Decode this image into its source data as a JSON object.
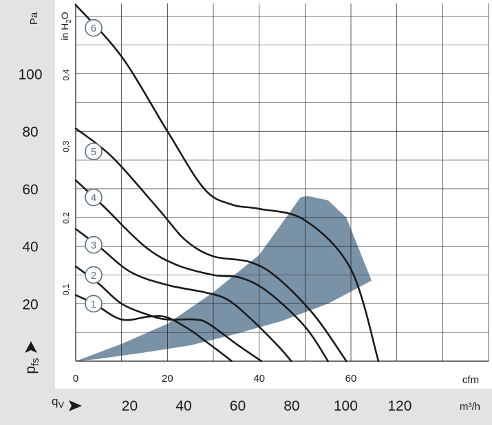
{
  "chart_data": {
    "type": "line",
    "title": "",
    "colors": {
      "background": "#ffffff",
      "frame_gray": "#e3e3e3",
      "grid": "#1a1a1a",
      "curve": "#1a1a1a",
      "region_fill": "#7a92a6",
      "marker_stroke": "#5a7386",
      "text": "#1a1a1a"
    },
    "x_axis": {
      "label": "cfm",
      "range": [
        0,
        90
      ],
      "ticks": [
        "0",
        "20",
        "40",
        "60"
      ],
      "tick_values": [
        0,
        20,
        40,
        60
      ]
    },
    "x_axis_secondary": {
      "label": "m³/h",
      "symbol": "qV",
      "range": [
        0,
        152.9
      ],
      "ticks": [
        "20",
        "40",
        "60",
        "80",
        "100",
        "120"
      ],
      "tick_values": [
        20,
        40,
        60,
        80,
        100,
        120
      ]
    },
    "y_axis": {
      "label": "Pa",
      "symbol": "pfs",
      "range": [
        0,
        124.5
      ],
      "ticks": [
        "20",
        "40",
        "60",
        "80",
        "100"
      ],
      "tick_values": [
        20,
        40,
        60,
        80,
        100
      ]
    },
    "y_axis_secondary": {
      "label": "in H2O",
      "range": [
        0,
        0.5
      ],
      "ticks": [
        "0,1",
        "0,2",
        "0,3",
        "0,4"
      ],
      "tick_values": [
        0.1,
        0.2,
        0.3,
        0.4
      ]
    },
    "grid": true,
    "series": [
      {
        "name": "1",
        "x": [
          0,
          4,
          10,
          16,
          20,
          25,
          28,
          32,
          34
        ],
        "y": [
          23,
          20,
          14.5,
          15.5,
          15.2,
          10.8,
          7.3,
          2.5,
          0
        ]
      },
      {
        "name": "2",
        "x": [
          0,
          5,
          10,
          16,
          20,
          26,
          29,
          35,
          40.5
        ],
        "y": [
          33,
          27,
          20,
          16,
          14.5,
          14.5,
          13,
          6,
          0
        ]
      },
      {
        "name": "3",
        "x": [
          0,
          5,
          12,
          20,
          28,
          33,
          38,
          44,
          47
        ],
        "y": [
          46,
          40,
          31,
          26.5,
          24,
          21.5,
          15,
          5.5,
          0
        ]
      },
      {
        "name": "4",
        "x": [
          0,
          6,
          15,
          22,
          30,
          36,
          42,
          50,
          55
        ],
        "y": [
          63,
          54,
          40,
          33.5,
          30,
          29,
          24,
          12,
          0
        ]
      },
      {
        "name": "5",
        "x": [
          0,
          8,
          18,
          24,
          30,
          38,
          44,
          52,
          59
        ],
        "y": [
          81,
          71,
          53,
          42,
          36.5,
          34.5,
          29,
          16,
          0
        ]
      },
      {
        "name": "6",
        "x": [
          0,
          10,
          20,
          28,
          34,
          40,
          50,
          60,
          66
        ],
        "y": [
          124,
          106,
          80,
          60,
          54.5,
          53,
          49,
          32,
          0
        ]
      }
    ],
    "region": {
      "x": [
        0,
        10,
        20,
        30,
        40,
        49,
        50.5,
        55,
        59,
        64,
        64.5,
        55,
        45,
        35,
        25,
        15,
        5,
        0
      ],
      "y": [
        0,
        6,
        13,
        24,
        37,
        57,
        57.5,
        56,
        50,
        30,
        28,
        20,
        14,
        9.5,
        5.5,
        3,
        0.8,
        0
      ]
    },
    "markers": [
      {
        "label": "1",
        "x": 3.9,
        "y": 20
      },
      {
        "label": "2",
        "x": 3.9,
        "y": 30
      },
      {
        "label": "3",
        "x": 3.9,
        "y": 40.5
      },
      {
        "label": "4",
        "x": 3.9,
        "y": 57
      },
      {
        "label": "5",
        "x": 3.9,
        "y": 73
      },
      {
        "label": "6",
        "x": 3.9,
        "y": 116
      }
    ]
  }
}
